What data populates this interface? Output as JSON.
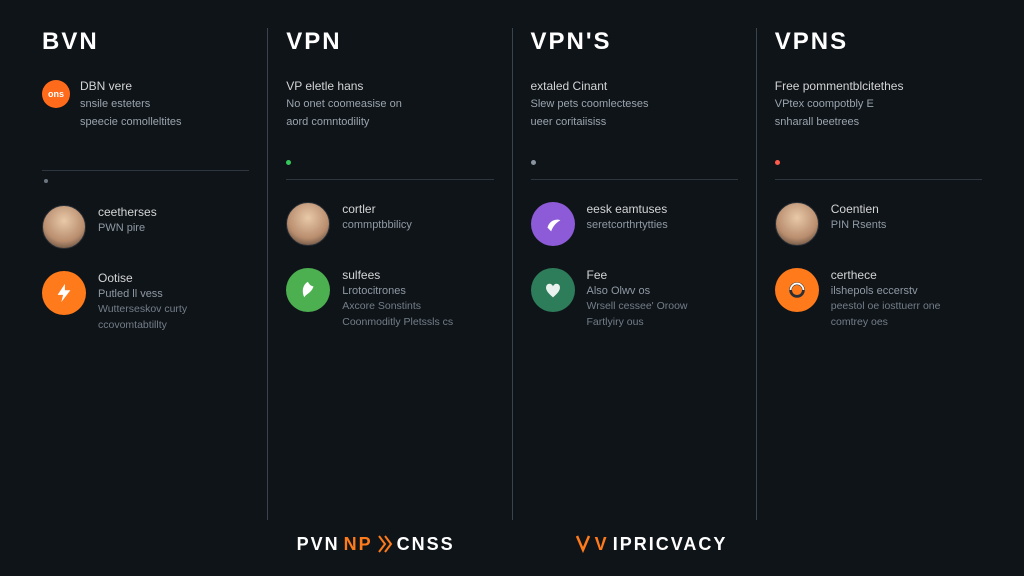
{
  "background": "#0f1419",
  "divider_color": "#3a4450",
  "hr_color": "#2e3640",
  "columns": [
    {
      "heading": "BVN",
      "badge": {
        "text": "ons",
        "bg": "#ff6b1a"
      },
      "top": {
        "line1": "DBN vere",
        "line2": "snsile esteters",
        "line3": "speecie comolleltites"
      },
      "bullets": [],
      "dot_after_hr": true,
      "items": [
        {
          "circle": {
            "type": "avatar"
          },
          "t1": "ceetherses",
          "t2": "PWN pire"
        },
        {
          "circle": {
            "type": "icon",
            "bg": "#ff7a1a",
            "glyph": "bolt"
          },
          "t1": "Ootise",
          "t2": "Putled ll vess",
          "t3a": "Wutterseskov curty",
          "t3b": "ccovomtabtillty"
        }
      ]
    },
    {
      "heading": "VPN",
      "top": {
        "line1": "VP eletle hans",
        "line2": "No onet coomeasise on",
        "line3": "aord comntodility"
      },
      "bullets": [
        {
          "color": "#34c759",
          "text": ""
        }
      ],
      "items": [
        {
          "circle": {
            "type": "avatar"
          },
          "t1": "cortler",
          "t2": "commptbbilicy"
        },
        {
          "circle": {
            "type": "icon",
            "bg": "#4caf50",
            "glyph": "leaf"
          },
          "t1": "sulfees",
          "t2": "Lrotocitrones",
          "t3a": "Axcore Sonstints",
          "t3b": "Coonmoditly Pletssls cs"
        }
      ]
    },
    {
      "heading": "VPN'S",
      "top": {
        "line1": "extaled Cinant",
        "line2": "Slew pets coomlecteses",
        "line3": "ueer coritaiisiss"
      },
      "bullets": [
        {
          "color": "#8a94a0",
          "text": ""
        }
      ],
      "items": [
        {
          "circle": {
            "type": "icon",
            "bg": "#8e5bd8",
            "glyph": "swoosh"
          },
          "t1": "eesk eamtuses",
          "t2": "seretcorthrtytties"
        },
        {
          "circle": {
            "type": "icon",
            "bg": "#2e7d5a",
            "glyph": "heart"
          },
          "t1": "Fee",
          "t2": "Also Olwv os",
          "t3a": "Wrsell cessee' Oroow",
          "t3b": "Fartlyiry ous"
        }
      ]
    },
    {
      "heading": "VPNS",
      "top": {
        "line1": "Free pommentblcitethes",
        "line2": "VPtex coompotbly E",
        "line3": "snharall beetrees"
      },
      "bullets": [
        {
          "color": "#ff5a4a",
          "text": ""
        }
      ],
      "items": [
        {
          "circle": {
            "type": "avatar"
          },
          "t1": "Coentien",
          "t2": "PIN Rsents"
        },
        {
          "circle": {
            "type": "icon",
            "bg": "#ff7a1a",
            "glyph": "ring"
          },
          "t1": "certhece",
          "t2": "ilshepols eccerstv",
          "t3a": "peestol oe iosttuerr one",
          "t3b": "comtrey oes"
        }
      ]
    }
  ],
  "footer": {
    "brand1": {
      "a": "PVN",
      "b": "NP",
      "c": "CNSS"
    },
    "brand2": {
      "a": "V",
      "b": "IPRICVACY"
    }
  }
}
